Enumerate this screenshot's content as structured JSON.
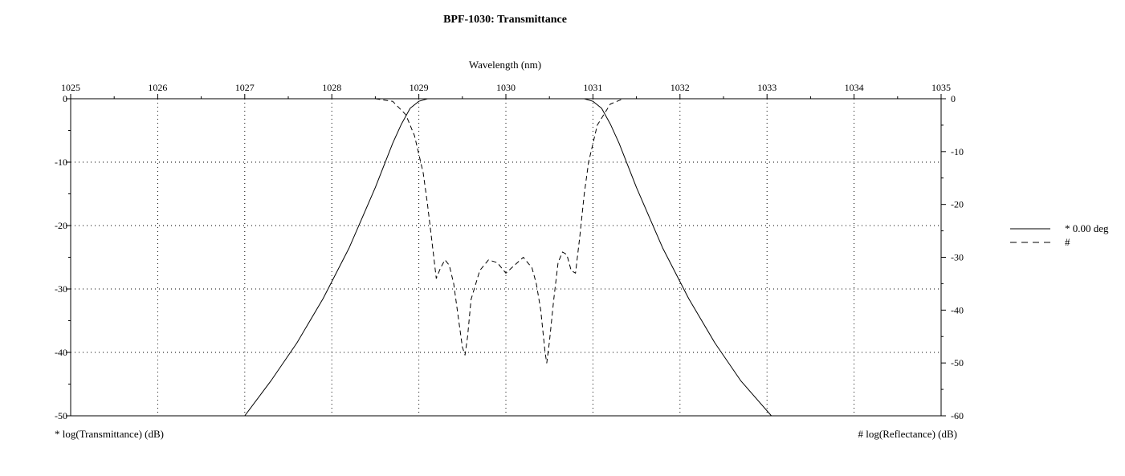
{
  "chart_data": {
    "type": "line",
    "title": "BPF-1030: Transmittance",
    "xlabel": "Wavelength (nm)",
    "ylabel_left": "* log(Transmittance) (dB)",
    "ylabel_right": "# log(Reflectance) (dB)",
    "xlim": [
      1025,
      1035
    ],
    "ylim_left": [
      -50,
      0
    ],
    "ylim_right": [
      -60,
      0
    ],
    "x_ticks": [
      "1025",
      "1026",
      "1027",
      "1028",
      "1029",
      "1030",
      "1031",
      "1032",
      "1033",
      "1034",
      "1035"
    ],
    "y_ticks_left": [
      "0",
      "-10",
      "-20",
      "-30",
      "-40",
      "-50"
    ],
    "y_ticks_right": [
      "0",
      "-10",
      "-20",
      "-30",
      "-40",
      "-50",
      "-60"
    ],
    "grid": true,
    "legend_position": "right",
    "legend": [
      {
        "label": "* 0.00 deg",
        "style": "solid"
      },
      {
        "label": "#",
        "style": "dashed"
      }
    ],
    "series": [
      {
        "name": "* 0.00 deg",
        "axis": "left",
        "style": "solid",
        "color": "#000000",
        "x": [
          1027.0,
          1027.3,
          1027.6,
          1027.9,
          1028.2,
          1028.5,
          1028.7,
          1028.8,
          1028.9,
          1029.0,
          1029.1,
          1029.2,
          1029.5,
          1030.0,
          1030.5,
          1030.8,
          1030.9,
          1031.0,
          1031.1,
          1031.2,
          1031.3,
          1031.5,
          1031.8,
          1032.1,
          1032.4,
          1032.7,
          1033.05
        ],
        "y": [
          -50.0,
          -44.5,
          -38.5,
          -31.5,
          -23.5,
          -14.0,
          -7.0,
          -4.0,
          -1.5,
          -0.4,
          0.0,
          0.0,
          0.0,
          0.0,
          0.0,
          0.0,
          0.0,
          -0.4,
          -1.5,
          -4.0,
          -7.0,
          -14.0,
          -23.5,
          -31.5,
          -38.5,
          -44.5,
          -50.0
        ]
      },
      {
        "name": "#",
        "axis": "right",
        "style": "dashed",
        "color": "#000000",
        "x": [
          1028.5,
          1028.7,
          1028.85,
          1028.95,
          1029.05,
          1029.1,
          1029.15,
          1029.2,
          1029.25,
          1029.3,
          1029.35,
          1029.4,
          1029.45,
          1029.5,
          1029.53,
          1029.56,
          1029.6,
          1029.7,
          1029.8,
          1029.9,
          1030.0,
          1030.1,
          1030.2,
          1030.3,
          1030.35,
          1030.4,
          1030.45,
          1030.47,
          1030.5,
          1030.55,
          1030.6,
          1030.65,
          1030.7,
          1030.75,
          1030.8,
          1030.85,
          1030.9,
          1030.95,
          1031.05,
          1031.2,
          1031.35,
          1031.5
        ],
        "y": [
          0.0,
          -0.5,
          -3.0,
          -7.0,
          -14.0,
          -20.0,
          -27.0,
          -34.0,
          -32.0,
          -30.5,
          -31.5,
          -35.0,
          -41.0,
          -47.0,
          -48.5,
          -45.0,
          -38.0,
          -32.5,
          -30.5,
          -31.0,
          -33.0,
          -31.5,
          -30.0,
          -32.0,
          -35.0,
          -40.0,
          -48.0,
          -50.0,
          -46.0,
          -38.0,
          -31.0,
          -29.0,
          -29.5,
          -32.5,
          -33.0,
          -26.0,
          -18.0,
          -12.0,
          -5.0,
          -1.0,
          0.0,
          0.0
        ]
      }
    ]
  }
}
